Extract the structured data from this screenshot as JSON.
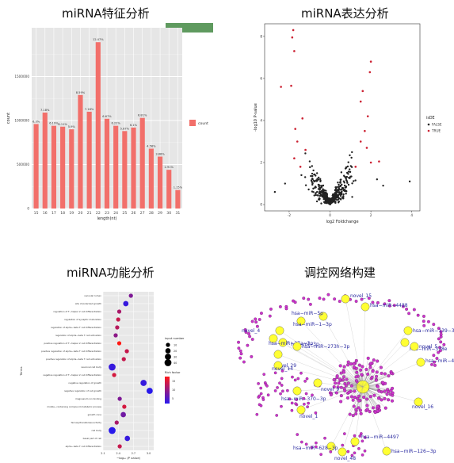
{
  "titles": {
    "feature": "miRNA特征分析",
    "expression": "miRNA表达分析",
    "function": "miRNA功能分析",
    "network": "调控网络构建"
  },
  "colors": {
    "bar": "#f26f6a",
    "panel_bg": "#e6e6e6",
    "green_badge": "#5f9a5f",
    "volcano_true": "#cc2233",
    "volcano_false": "#222222",
    "node_yellow": "#ffff33",
    "node_magenta": "#cc33cc",
    "label_blue": "#2a2aa0"
  },
  "chart_data": [
    {
      "type": "bar",
      "title": "",
      "xlabel": "length(nt)",
      "ylabel": "count",
      "categories": [
        "15",
        "16",
        "17",
        "18",
        "19",
        "20",
        "21",
        "22",
        "23",
        "24",
        "25",
        "26",
        "27",
        "28",
        "29",
        "30",
        "31"
      ],
      "values": [
        960000,
        1090000,
        940000,
        930000,
        900000,
        1290000,
        1100000,
        1890000,
        1020000,
        940000,
        880000,
        920000,
        1030000,
        680000,
        590000,
        440000,
        210000
      ],
      "data_labels": [
        "6.3%",
        "7.18%",
        "6.19%",
        "6.11%",
        "5.9%",
        "8.59%",
        "7.18%",
        "12.47%",
        "6.67%",
        "6.22%",
        "5.87%",
        "6.1%",
        "6.81%",
        "4.58%",
        "3.88%",
        "2.91%",
        "1.15%"
      ],
      "ylim": [
        0,
        2000000
      ],
      "yticks": [
        "0",
        "500000",
        "1000000",
        "1500000"
      ],
      "legend": [
        "count"
      ],
      "legend_position": "right",
      "grid": true
    },
    {
      "type": "scatter",
      "title": "",
      "xlabel": "log2 Foldchange",
      "ylabel": "-log10 P-value",
      "xlim": [
        -3.2,
        4.4
      ],
      "ylim": [
        -0.3,
        8.6
      ],
      "xticks": [
        "-2",
        "0",
        "2",
        "4"
      ],
      "yticks": [
        "0",
        "2",
        "4",
        "6",
        "8"
      ],
      "legend_title": "isDE",
      "legend": [
        "FALSE",
        "TRUE"
      ],
      "legend_position": "right",
      "series": [
        {
          "name": "TRUE",
          "points": [
            [
              -1.8,
              8.3
            ],
            [
              -1.85,
              7.95
            ],
            [
              -1.75,
              7.3
            ],
            [
              -2.4,
              5.6
            ],
            [
              -1.9,
              5.65
            ],
            [
              -1.35,
              4.1
            ],
            [
              -1.7,
              3.6
            ],
            [
              -1.6,
              3.0
            ],
            [
              -1.2,
              2.6
            ],
            [
              -1.75,
              2.2
            ],
            [
              -1.45,
              1.8
            ],
            [
              2.0,
              6.8
            ],
            [
              1.95,
              6.3
            ],
            [
              1.6,
              5.4
            ],
            [
              1.5,
              4.9
            ],
            [
              1.85,
              4.2
            ],
            [
              1.7,
              3.5
            ],
            [
              1.5,
              3.0
            ],
            [
              1.8,
              2.7
            ],
            [
              2.0,
              2.0
            ],
            [
              1.25,
              1.8
            ],
            [
              2.4,
              2.05
            ]
          ]
        },
        {
          "name": "FALSE",
          "points": []
        }
      ]
    },
    {
      "type": "scatter",
      "title": "",
      "xlabel": "−log₁₀ (P value)",
      "ylabel": "Terms",
      "xticks": [
        "2.1",
        "2.4",
        "2.7",
        "3.0"
      ],
      "xlim": [
        2.1,
        3.1
      ],
      "categories": [
        "vacuolar lumen",
        "site of polarized growth",
        "regulation of T−helper 2 cell differentiation",
        "regulation of synaptic maturation",
        "regulation of alpha−beta T cell differentiation",
        "regulation of alpha−beta T cell activation",
        "positive regulation of T−helper 2 cell differentiation",
        "positive regulation of alpha−beta T cell differentiation",
        "positive regulation of alpha−beta T cell activation",
        "neuronal cell body",
        "negative regulation of T−helper 2 cell differentiation",
        "negative regulation of growth",
        "negative regulation of cell growth",
        "magnesium ion binding",
        "mobile−containing compound metabolic process",
        "growth cone",
        "farnesyltransferase activity",
        "cell body",
        "basal part of cell",
        "alpha−beta T cell differentiation"
      ],
      "x": [
        2.65,
        2.55,
        2.42,
        2.4,
        2.38,
        2.35,
        2.42,
        2.57,
        2.51,
        2.28,
        2.32,
        2.9,
        3.02,
        2.43,
        2.52,
        2.5,
        2.37,
        2.28,
        2.58,
        2.43
      ],
      "size": [
        10,
        20,
        10,
        10,
        10,
        10,
        10,
        10,
        10,
        40,
        10,
        30,
        30,
        10,
        10,
        20,
        10,
        40,
        20,
        10
      ],
      "rich_factor": [
        9,
        4,
        12,
        14,
        13,
        10,
        18,
        14,
        14,
        4,
        15,
        4,
        3,
        9,
        15,
        8,
        12,
        3,
        4,
        14
      ],
      "legend_size_title": "input number",
      "legend_size": [
        "10",
        "20",
        "30",
        "40"
      ],
      "legend_color_title": "Rich factor",
      "legend_color": [
        "15",
        "10",
        "5"
      ],
      "legend_position": "right"
    }
  ],
  "network": {
    "labels": [
      "novel_15",
      "hsa−miR−4488",
      "hsa−miR−5p",
      "hsa−miR−1−3p",
      "novel_4",
      "hsa−mi−3p",
      "hsa−miR−27a−3p",
      "hsa−miR−273h−3p",
      "novel_29",
      "novel_14",
      "novel_9",
      "hsa−miR−370−3p",
      "novel_1",
      "hsa−miR−139−3p",
      "hsa−miR−378e",
      "novel_5",
      "hsa−miR−4−3p",
      "novel_16",
      "hsa−miR−4497",
      "hsa−miR−628−3p",
      "novel_48",
      "hsa−miR−126−3p"
    ]
  }
}
